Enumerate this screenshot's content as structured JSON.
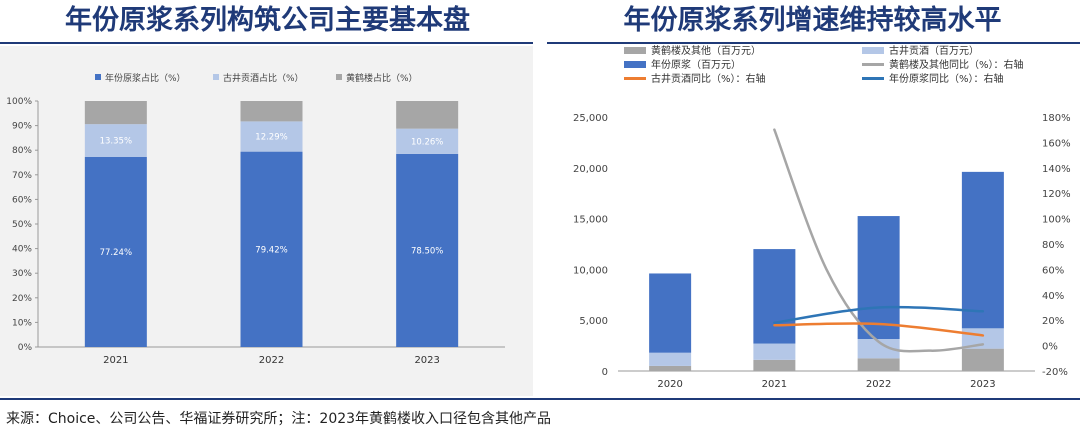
{
  "titles": {
    "left": "年份原浆系列构筑公司主要基本盘",
    "right": "年份原浆系列增速维持较高水平"
  },
  "source": "来源：Choice、公司公告、华福证券研究所；注：2023年黄鹤楼收入口径包含其他产品",
  "colors": {
    "accent": "#1f3a78",
    "dark_blue": "#4472c4",
    "light_blue": "#b4c7e7",
    "gray": "#a6a6a6",
    "orange": "#ed7d31",
    "line_gray": "#a6a6a6",
    "line_blue": "#2e75b6"
  },
  "chart_data": [
    {
      "type": "bar",
      "stacked": true,
      "categories": [
        "2021",
        "2022",
        "2023"
      ],
      "series": [
        {
          "name": "年份原浆占比（%）",
          "values": [
            77.24,
            79.42,
            78.5
          ],
          "labels": [
            "77.24%",
            "79.42%",
            "78.50%"
          ]
        },
        {
          "name": "古井贡酒占比（%）",
          "values": [
            13.35,
            12.29,
            10.26
          ],
          "labels": [
            "13.35%",
            "12.29%",
            "10.26%"
          ]
        },
        {
          "name": "黄鹤楼占比（%）",
          "values": [
            9.41,
            8.29,
            11.24
          ],
          "labels": [
            "",
            "",
            ""
          ]
        }
      ],
      "ylim": [
        0,
        100
      ],
      "yticks": [
        "0%",
        "10%",
        "20%",
        "30%",
        "40%",
        "50%",
        "60%",
        "70%",
        "80%",
        "90%",
        "100%"
      ],
      "legend": "top",
      "grid": false
    },
    {
      "type": "bar",
      "stacked": true,
      "categories": [
        "2020",
        "2021",
        "2022",
        "2023"
      ],
      "series": [
        {
          "name": "黄鹤楼及其他（百万元）",
          "type": "bar",
          "values": [
            500,
            1100,
            1250,
            2200
          ]
        },
        {
          "name": "古井贡酒（百万元）",
          "type": "bar",
          "values": [
            1300,
            1600,
            1900,
            2000
          ]
        },
        {
          "name": "年份原浆（百万元）",
          "type": "bar",
          "values": [
            7800,
            9300,
            12100,
            15400
          ]
        },
        {
          "name": "黄鹤楼及其他同比（%）：右轴",
          "type": "line",
          "axis": "right",
          "x": [
            2021,
            2021.5,
            2022,
            2022.5,
            2023
          ],
          "values": [
            170,
            60,
            3,
            -4,
            1
          ]
        },
        {
          "name": "古井贡酒同比（%）：右轴",
          "type": "line",
          "axis": "right",
          "values": [
            null,
            16,
            17,
            8
          ]
        },
        {
          "name": "年份原浆同比（%）：右轴",
          "type": "line",
          "axis": "right",
          "values": [
            null,
            18,
            30,
            27
          ]
        }
      ],
      "ylim": [
        0,
        25000
      ],
      "yticks": [
        "0",
        "5,000",
        "10,000",
        "15,000",
        "20,000",
        "25,000"
      ],
      "y2lim": [
        -20,
        180
      ],
      "y2ticks": [
        "-20%",
        "0%",
        "20%",
        "40%",
        "60%",
        "80%",
        "100%",
        "120%",
        "140%",
        "160%",
        "180%"
      ],
      "legend": "top",
      "grid": false
    }
  ]
}
